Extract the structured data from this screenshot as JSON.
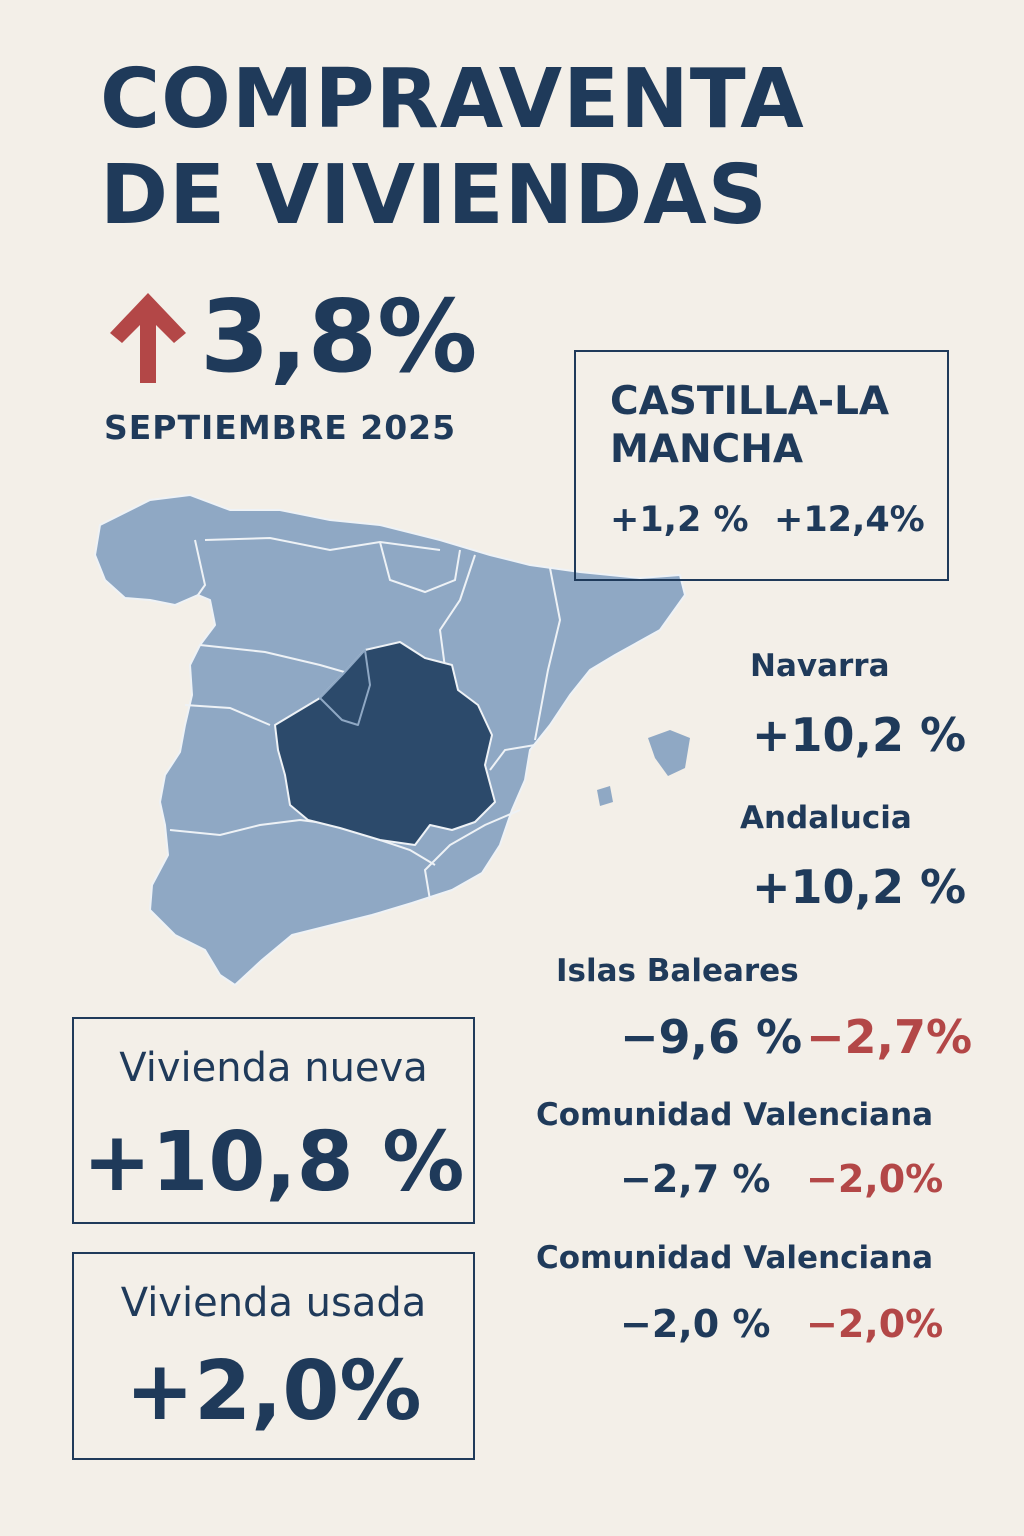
{
  "title": {
    "line1": "COMPRAVENTA",
    "line2": "DE VIVIENDAS"
  },
  "headline": {
    "icon": "arrow-up-icon",
    "arrow_color": "#b34747",
    "value": "3,8%",
    "date": "SEPTIEMBRE 2025"
  },
  "map": {
    "region_color": "#8fa8c4",
    "highlight_color": "#2c4a6b",
    "highlighted_region": "Castilla-La Mancha"
  },
  "featured": {
    "name": "CASTILLA-LA MANCHA",
    "value1": "+1,2 %",
    "value2": "+12,4%"
  },
  "regions": [
    {
      "name": "Navarra",
      "value": "+10,2 %"
    },
    {
      "name": "Andalucia",
      "value": "+10,2 %"
    },
    {
      "name": "Islas Baleares",
      "value": "−9,6 %",
      "value2": "−2,7%"
    },
    {
      "name": "Comunidad Valenciana",
      "value": "−2,7 %",
      "value2": "−2,0%"
    },
    {
      "name": "Comunidad Valenciana",
      "value": "−2,0 %",
      "value2": "−2,0%"
    }
  ],
  "new_home": {
    "label": "Vivienda nueva",
    "value": "+10,8 %"
  },
  "used_home": {
    "label": "Vivienda usada",
    "value": "+2,0%"
  },
  "colors": {
    "primary": "#1f3a5a",
    "negative": "#b34747",
    "background": "#f3efe8"
  }
}
